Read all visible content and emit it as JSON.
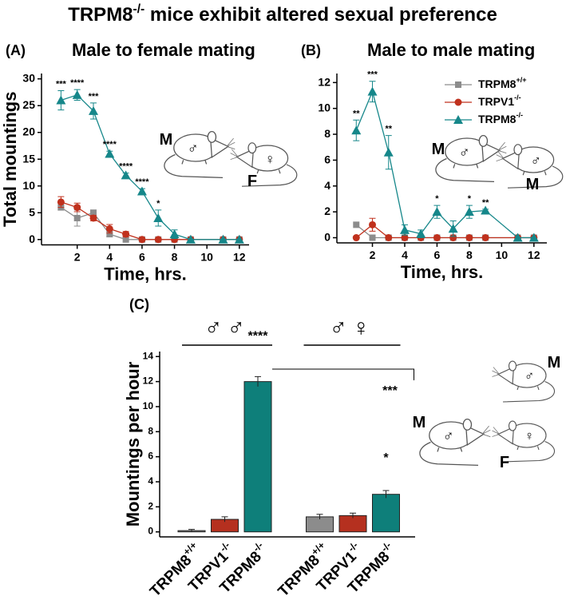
{
  "title": "TRPM8-/- mice exhibit altered sexual preference",
  "chart_data": [
    {
      "type": "line",
      "panel": "(A)",
      "title": "Male to female mating",
      "x_label": "Time, hrs.",
      "y_label": "Total mountings",
      "x": [
        1,
        2,
        3,
        4,
        5,
        6,
        7,
        8,
        9,
        11,
        12
      ],
      "xlim": [
        -0.2,
        12.6
      ],
      "xticks": [
        2,
        4,
        6,
        8,
        10,
        12
      ],
      "ylim": [
        -1,
        31
      ],
      "yticks": [
        0,
        5,
        10,
        15,
        20,
        25,
        30
      ],
      "series": [
        {
          "color": "#8c8c8c",
          "marker": "square",
          "values": [
            6,
            4,
            5,
            1,
            0,
            0,
            0,
            0,
            0,
            0,
            0
          ],
          "errors": [
            0.5,
            1.5,
            0.5,
            0.5,
            0,
            0,
            0,
            0,
            0,
            0,
            0
          ]
        },
        {
          "color": "#c0311d",
          "marker": "circle",
          "values": [
            7,
            6,
            4,
            2,
            1,
            0,
            0,
            0,
            0,
            0,
            0
          ],
          "errors": [
            1,
            0.8,
            0.5,
            0.8,
            0.5,
            0,
            0,
            0,
            0,
            0,
            0
          ]
        },
        {
          "color": "#16878a",
          "marker": "triangle",
          "values": [
            26,
            27,
            24,
            16,
            12,
            9,
            4,
            1,
            0,
            0,
            0
          ],
          "errors": [
            1.8,
            1,
            1.5,
            0.5,
            0.4,
            0.5,
            1.5,
            0.8,
            0,
            0,
            0
          ],
          "significance": [
            "***",
            "****",
            "***",
            "****",
            "****",
            "****",
            "*",
            null,
            null,
            null,
            null
          ]
        }
      ],
      "icons": [
        {
          "label": "M",
          "symbol": "♂"
        },
        {
          "label": "F",
          "symbol": "♀"
        }
      ]
    },
    {
      "type": "line",
      "panel": "(B)",
      "title": "Male to male mating",
      "x_label": "Time, hrs.",
      "x": [
        1,
        2,
        3,
        4,
        5,
        6,
        7,
        8,
        9,
        11,
        12
      ],
      "xlim": [
        -0.2,
        12.8
      ],
      "xticks": [
        2,
        4,
        6,
        8,
        10,
        12
      ],
      "ylim": [
        -0.4,
        12.7
      ],
      "yticks": [
        0,
        2,
        4,
        6,
        8,
        10,
        12
      ],
      "legend": "upper right",
      "series": [
        {
          "name": "TRPM8+/+",
          "color": "#8c8c8c",
          "marker": "square",
          "values": [
            1,
            0,
            0,
            0,
            0,
            0,
            0,
            0,
            0,
            0,
            0
          ],
          "errors": [
            0,
            0,
            0,
            0,
            0,
            0,
            0,
            0,
            0,
            0,
            0
          ]
        },
        {
          "name": "TRPV1-/-",
          "color": "#c0311d",
          "marker": "circle",
          "values": [
            0,
            1,
            0,
            0,
            0,
            0,
            0,
            0,
            0,
            0,
            0
          ],
          "errors": [
            0,
            0.5,
            0,
            0,
            0,
            0,
            0,
            0,
            0,
            0,
            0
          ]
        },
        {
          "name": "TRPM8-/-",
          "color": "#16878a",
          "marker": "triangle",
          "values": [
            8.3,
            11.3,
            6.6,
            0.6,
            0.3,
            2,
            0.7,
            2,
            2.1,
            0,
            0
          ],
          "errors": [
            0.8,
            0.8,
            1.3,
            0.4,
            0.3,
            0.5,
            0.6,
            0.5,
            0.1,
            0,
            0
          ],
          "significance": [
            "**",
            "***",
            "**",
            null,
            null,
            "*",
            null,
            "*",
            "**",
            null,
            null
          ]
        }
      ],
      "icons": [
        {
          "label": "M",
          "symbol": "♂"
        },
        {
          "label": "M",
          "symbol": "♂"
        }
      ]
    },
    {
      "type": "bar",
      "panel": "(C)",
      "y_label": "Mountings per hour",
      "categories": [
        "TRPM8+/+",
        "TRPV1-/-",
        "TRPM8-/-",
        "TRPM8+/+",
        "TRPV1-/-",
        "TRPM8-/-"
      ],
      "values": [
        0.1,
        1,
        12,
        1.2,
        1.3,
        3
      ],
      "errors": [
        0.1,
        0.2,
        0.4,
        0.2,
        0.2,
        0.3
      ],
      "colors": [
        "#8c8c8c",
        "#b5301f",
        "#0e7f7a",
        "#8c8c8c",
        "#b5301f",
        "#0e7f7a"
      ],
      "significance": [
        null,
        null,
        "****",
        null,
        null,
        "*"
      ],
      "comparison": "***",
      "groups": [
        "♂♂",
        "♂♀"
      ],
      "ylim": [
        -0.4,
        14.4
      ],
      "yticks": [
        0,
        2,
        4,
        6,
        8,
        10,
        12,
        14
      ],
      "icons": [
        {
          "label": "M",
          "symbol": "♂"
        },
        {
          "label": "M",
          "symbol": "♂"
        },
        {
          "label": "F",
          "symbol": "♀"
        }
      ]
    }
  ]
}
